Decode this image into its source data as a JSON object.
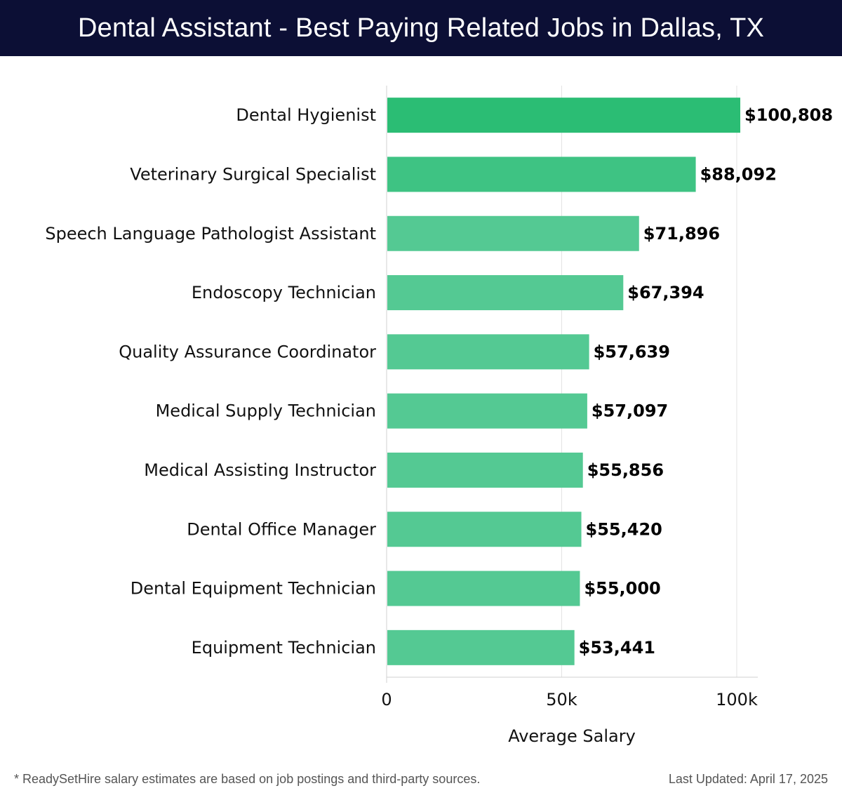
{
  "header": {
    "title": "Dental Assistant - Best Paying Related Jobs in Dallas, TX"
  },
  "footer": {
    "note": "* ReadySetHire salary estimates are based on job postings and third-party sources.",
    "updated": "Last Updated: April 17, 2025"
  },
  "colors": {
    "header_bg": "#0c0f35",
    "bar_top": "#2bbd74",
    "bar": "#54c993",
    "text": "#111111"
  },
  "chart_data": {
    "type": "bar",
    "orientation": "horizontal",
    "title": "Dental Assistant - Best Paying Related Jobs in Dallas, TX",
    "xlabel": "Average Salary",
    "ylabel": "",
    "xlim": [
      0,
      106000
    ],
    "xticks": [
      0,
      50000,
      100000
    ],
    "xtick_labels": [
      "0",
      "50k",
      "100k"
    ],
    "grid": true,
    "categories": [
      "Dental Hygienist",
      "Veterinary Surgical Specialist",
      "Speech Language Pathologist Assistant",
      "Endoscopy Technician",
      "Quality Assurance Coordinator",
      "Medical Supply Technician",
      "Medical Assisting Instructor",
      "Dental Office Manager",
      "Dental Equipment Technician",
      "Equipment Technician"
    ],
    "values": [
      100808,
      88092,
      71896,
      67394,
      57639,
      57097,
      55856,
      55420,
      55000,
      53441
    ],
    "value_labels": [
      "$100,808",
      "$88,092",
      "$71,896",
      "$67,394",
      "$57,639",
      "$57,097",
      "$55,856",
      "$55,420",
      "$55,000",
      "$53,441"
    ]
  }
}
